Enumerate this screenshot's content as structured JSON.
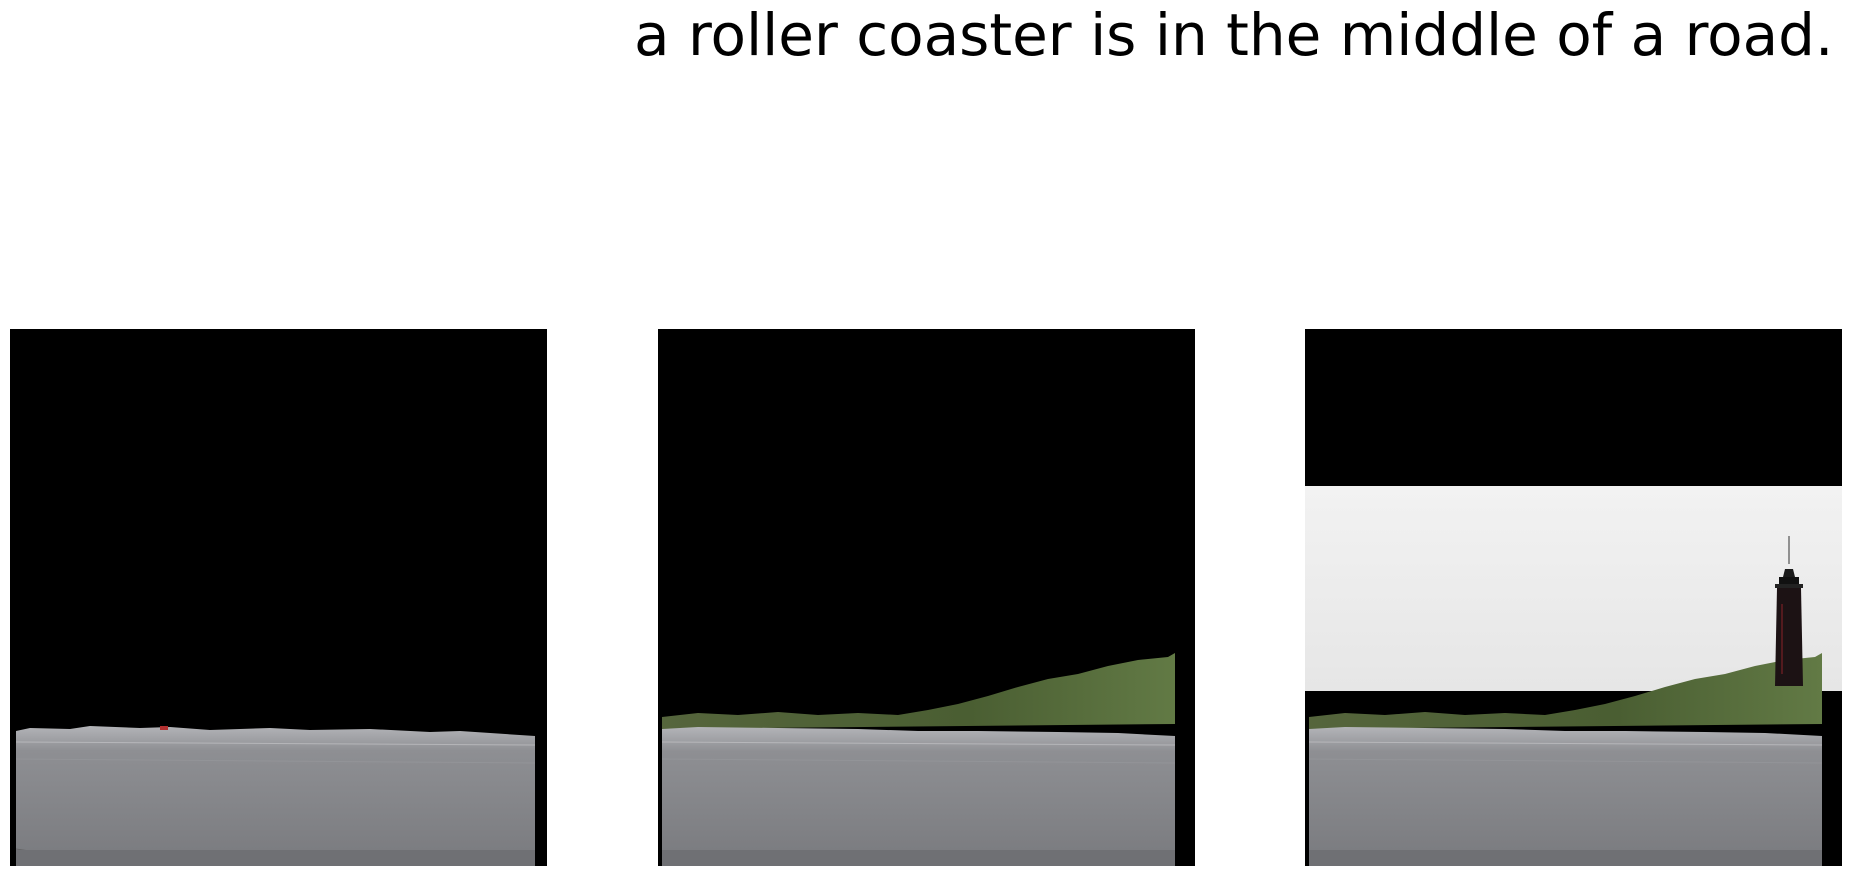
{
  "caption": "a roller coaster is in the middle of a road.",
  "panels": [
    {
      "content": [
        "road"
      ]
    },
    {
      "content": [
        "road",
        "trees"
      ]
    },
    {
      "content": [
        "road",
        "trees",
        "sky",
        "lighthouse"
      ]
    }
  ],
  "colors": {
    "background": "#ffffff",
    "mask": "#000000",
    "road": "#8a8b8f",
    "trees": "#4d6035",
    "sky": "#ececec",
    "lighthouse": "#1c1214"
  }
}
